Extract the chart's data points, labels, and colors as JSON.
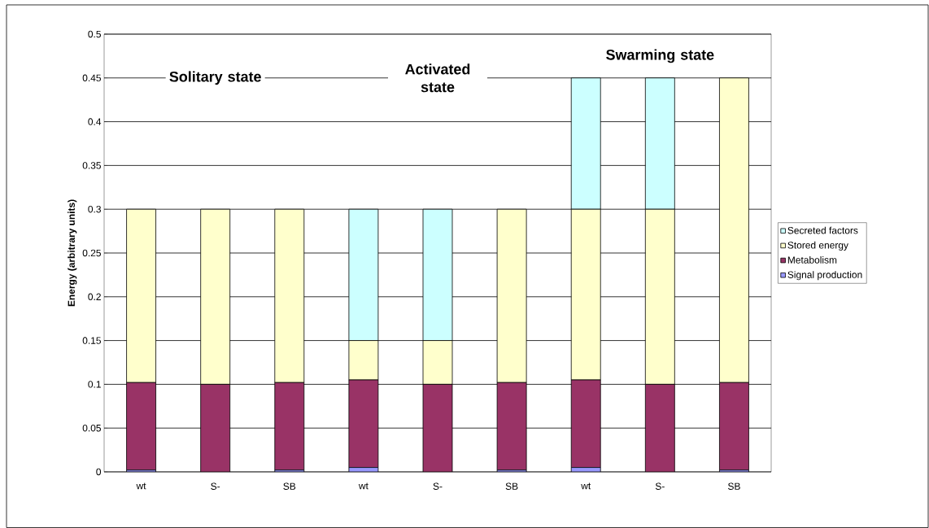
{
  "chart_data": {
    "type": "bar",
    "stacked": true,
    "ylabel": "Energy (arbitrary units)",
    "categories": [
      "wt",
      "S-",
      "SB",
      "wt",
      "S-",
      "SB",
      "wt",
      "S-",
      "SB"
    ],
    "series": [
      {
        "name": "Signal production",
        "color": "#9999ff",
        "values": [
          0.002,
          0,
          0.002,
          0.005,
          0,
          0.002,
          0.005,
          0,
          0.002
        ]
      },
      {
        "name": "Metabolism",
        "color": "#993366",
        "values": [
          0.1,
          0.1,
          0.1,
          0.1,
          0.1,
          0.1,
          0.1,
          0.1,
          0.1
        ]
      },
      {
        "name": "Stored energy",
        "color": "#ffffcc",
        "values": [
          0.198,
          0.2,
          0.198,
          0.045,
          0.05,
          0.198,
          0.195,
          0.2,
          0.348
        ]
      },
      {
        "name": "Secreted factors",
        "color": "#ccffff",
        "values": [
          0,
          0,
          0,
          0.15,
          0.15,
          0,
          0.15,
          0.15,
          0
        ]
      }
    ],
    "ylim": [
      0,
      0.5
    ],
    "yticks": [
      0,
      0.05,
      0.1,
      0.15,
      0.2,
      0.25,
      0.3,
      0.35,
      0.4,
      0.45,
      0.5
    ],
    "grid": "y",
    "legend": "right",
    "annotations": [
      "Solitary state",
      "Activated state",
      "Swarming state"
    ]
  }
}
